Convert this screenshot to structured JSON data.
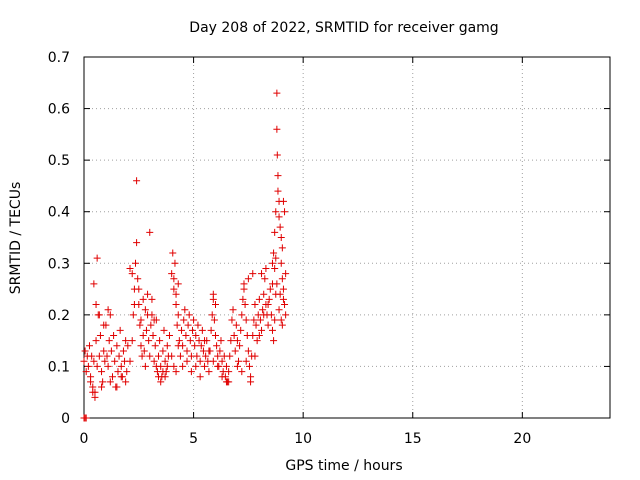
{
  "chart_data": {
    "type": "scatter",
    "title": "Day 208 of 2022, SRMTID for receiver gamg",
    "xlabel": "GPS time / hours",
    "ylabel": "SRMTID / TECUs",
    "xlim": [
      0,
      24
    ],
    "ylim": [
      0,
      0.7
    ],
    "xticks": [
      0,
      5,
      10,
      15,
      20
    ],
    "yticks": [
      0,
      0.1,
      0.2,
      0.3,
      0.4,
      0.5,
      0.6,
      0.7
    ],
    "xtick_labels": [
      "0",
      "5",
      "10",
      "15",
      "20"
    ],
    "ytick_labels": [
      "0",
      "0.1",
      "0.2",
      "0.3",
      "0.4",
      "0.5",
      "0.6",
      "0.7"
    ],
    "grid": true,
    "marker": "+",
    "color": "#e00000",
    "series": [
      {
        "name": "SRMTID",
        "points": [
          [
            0.0,
            0.0
          ],
          [
            0.05,
            0.0
          ],
          [
            0.1,
            0.0
          ],
          [
            0.0,
            0.11
          ],
          [
            0.05,
            0.13
          ],
          [
            0.1,
            0.09
          ],
          [
            0.15,
            0.12
          ],
          [
            0.2,
            0.1
          ],
          [
            0.25,
            0.14
          ],
          [
            0.3,
            0.08
          ],
          [
            0.35,
            0.12
          ],
          [
            0.4,
            0.06
          ],
          [
            0.45,
            0.11
          ],
          [
            0.5,
            0.05
          ],
          [
            0.55,
            0.15
          ],
          [
            0.6,
            0.1
          ],
          [
            0.65,
            0.2
          ],
          [
            0.7,
            0.12
          ],
          [
            0.75,
            0.16
          ],
          [
            0.8,
            0.09
          ],
          [
            0.85,
            0.07
          ],
          [
            0.9,
            0.13
          ],
          [
            0.95,
            0.11
          ],
          [
            1.0,
            0.18
          ],
          [
            1.05,
            0.12
          ],
          [
            1.1,
            0.1
          ],
          [
            1.15,
            0.15
          ],
          [
            1.2,
            0.2
          ],
          [
            1.25,
            0.13
          ],
          [
            1.3,
            0.08
          ],
          [
            1.35,
            0.16
          ],
          [
            1.4,
            0.11
          ],
          [
            1.45,
            0.06
          ],
          [
            1.5,
            0.14
          ],
          [
            1.55,
            0.09
          ],
          [
            1.6,
            0.12
          ],
          [
            1.65,
            0.17
          ],
          [
            1.7,
            0.1
          ],
          [
            1.75,
            0.08
          ],
          [
            1.8,
            0.13
          ],
          [
            1.85,
            0.11
          ],
          [
            1.9,
            0.15
          ],
          [
            1.95,
            0.09
          ],
          [
            2.0,
            0.14
          ],
          [
            0.45,
            0.26
          ],
          [
            0.6,
            0.31
          ],
          [
            0.55,
            0.22
          ],
          [
            0.7,
            0.2
          ],
          [
            0.9,
            0.18
          ],
          [
            1.1,
            0.21
          ],
          [
            0.3,
            0.07
          ],
          [
            0.4,
            0.05
          ],
          [
            0.5,
            0.04
          ],
          [
            0.8,
            0.06
          ],
          [
            1.2,
            0.07
          ],
          [
            1.5,
            0.06
          ],
          [
            1.7,
            0.08
          ],
          [
            1.9,
            0.07
          ],
          [
            2.1,
            0.11
          ],
          [
            2.2,
            0.15
          ],
          [
            2.25,
            0.2
          ],
          [
            2.3,
            0.25
          ],
          [
            2.35,
            0.3
          ],
          [
            2.4,
            0.34
          ],
          [
            2.45,
            0.27
          ],
          [
            2.5,
            0.22
          ],
          [
            2.55,
            0.18
          ],
          [
            2.6,
            0.14
          ],
          [
            2.65,
            0.12
          ],
          [
            2.7,
            0.16
          ],
          [
            2.75,
            0.13
          ],
          [
            2.8,
            0.1
          ],
          [
            2.85,
            0.17
          ],
          [
            2.9,
            0.2
          ],
          [
            2.95,
            0.15
          ],
          [
            3.0,
            0.12
          ],
          [
            3.05,
            0.18
          ],
          [
            3.1,
            0.23
          ],
          [
            3.15,
            0.16
          ],
          [
            3.2,
            0.11
          ],
          [
            3.25,
            0.14
          ],
          [
            3.3,
            0.19
          ],
          [
            3.35,
            0.09
          ],
          [
            3.4,
            0.12
          ],
          [
            3.45,
            0.15
          ],
          [
            3.5,
            0.1
          ],
          [
            3.55,
            0.08
          ],
          [
            3.6,
            0.13
          ],
          [
            3.65,
            0.17
          ],
          [
            3.7,
            0.11
          ],
          [
            3.75,
            0.09
          ],
          [
            3.8,
            0.14
          ],
          [
            3.85,
            0.12
          ],
          [
            3.9,
            0.16
          ],
          [
            2.4,
            0.46
          ],
          [
            3.0,
            0.36
          ],
          [
            2.1,
            0.29
          ],
          [
            2.2,
            0.28
          ],
          [
            2.3,
            0.22
          ],
          [
            2.5,
            0.25
          ],
          [
            2.6,
            0.19
          ],
          [
            2.7,
            0.23
          ],
          [
            2.8,
            0.21
          ],
          [
            2.9,
            0.24
          ],
          [
            3.1,
            0.2
          ],
          [
            3.2,
            0.19
          ],
          [
            3.3,
            0.1
          ],
          [
            3.4,
            0.08
          ],
          [
            3.5,
            0.07
          ],
          [
            3.6,
            0.09
          ],
          [
            3.7,
            0.08
          ],
          [
            3.8,
            0.1
          ],
          [
            4.0,
            0.28
          ],
          [
            4.05,
            0.32
          ],
          [
            4.1,
            0.25
          ],
          [
            4.15,
            0.3
          ],
          [
            4.2,
            0.22
          ],
          [
            4.25,
            0.18
          ],
          [
            4.3,
            0.2
          ],
          [
            4.35,
            0.15
          ],
          [
            4.4,
            0.12
          ],
          [
            4.45,
            0.17
          ],
          [
            4.5,
            0.14
          ],
          [
            4.55,
            0.19
          ],
          [
            4.6,
            0.21
          ],
          [
            4.65,
            0.16
          ],
          [
            4.7,
            0.13
          ],
          [
            4.75,
            0.18
          ],
          [
            4.8,
            0.2
          ],
          [
            4.85,
            0.15
          ],
          [
            4.9,
            0.12
          ],
          [
            4.95,
            0.17
          ],
          [
            5.0,
            0.19
          ],
          [
            5.05,
            0.14
          ],
          [
            5.1,
            0.16
          ],
          [
            5.15,
            0.12
          ],
          [
            5.2,
            0.18
          ],
          [
            5.25,
            0.15
          ],
          [
            5.3,
            0.11
          ],
          [
            5.35,
            0.14
          ],
          [
            5.4,
            0.17
          ],
          [
            5.45,
            0.13
          ],
          [
            5.5,
            0.1
          ],
          [
            5.55,
            0.12
          ],
          [
            5.6,
            0.15
          ],
          [
            5.65,
            0.11
          ],
          [
            5.7,
            0.09
          ],
          [
            5.75,
            0.13
          ],
          [
            5.8,
            0.17
          ],
          [
            5.85,
            0.2
          ],
          [
            5.9,
            0.23
          ],
          [
            5.95,
            0.19
          ],
          [
            6.0,
            0.16
          ],
          [
            6.05,
            0.14
          ],
          [
            6.1,
            0.12
          ],
          [
            6.15,
            0.1
          ],
          [
            6.2,
            0.13
          ],
          [
            6.25,
            0.15
          ],
          [
            6.3,
            0.11
          ],
          [
            6.35,
            0.09
          ],
          [
            6.4,
            0.12
          ],
          [
            6.45,
            0.08
          ],
          [
            6.5,
            0.1
          ],
          [
            6.55,
            0.07
          ],
          [
            6.6,
            0.09
          ],
          [
            6.65,
            0.12
          ],
          [
            4.0,
            0.12
          ],
          [
            4.1,
            0.1
          ],
          [
            4.2,
            0.09
          ],
          [
            4.3,
            0.14
          ],
          [
            4.5,
            0.1
          ],
          [
            4.7,
            0.11
          ],
          [
            4.9,
            0.09
          ],
          [
            5.1,
            0.1
          ],
          [
            5.3,
            0.08
          ],
          [
            5.5,
            0.15
          ],
          [
            5.7,
            0.13
          ],
          [
            5.9,
            0.11
          ],
          [
            6.1,
            0.1
          ],
          [
            6.3,
            0.08
          ],
          [
            6.5,
            0.07
          ],
          [
            6.6,
            0.07
          ],
          [
            4.1,
            0.27
          ],
          [
            4.2,
            0.24
          ],
          [
            4.3,
            0.26
          ],
          [
            5.9,
            0.24
          ],
          [
            6.0,
            0.22
          ],
          [
            6.7,
            0.15
          ],
          [
            6.75,
            0.19
          ],
          [
            6.8,
            0.21
          ],
          [
            6.85,
            0.16
          ],
          [
            6.9,
            0.13
          ],
          [
            6.95,
            0.18
          ],
          [
            7.0,
            0.15
          ],
          [
            7.05,
            0.11
          ],
          [
            7.1,
            0.14
          ],
          [
            7.15,
            0.17
          ],
          [
            7.2,
            0.2
          ],
          [
            7.25,
            0.23
          ],
          [
            7.3,
            0.26
          ],
          [
            7.35,
            0.22
          ],
          [
            7.4,
            0.19
          ],
          [
            7.45,
            0.16
          ],
          [
            7.5,
            0.13
          ],
          [
            7.55,
            0.1
          ],
          [
            7.6,
            0.08
          ],
          [
            7.65,
            0.12
          ],
          [
            7.7,
            0.16
          ],
          [
            7.75,
            0.19
          ],
          [
            7.8,
            0.22
          ],
          [
            7.85,
            0.18
          ],
          [
            7.9,
            0.15
          ],
          [
            7.95,
            0.2
          ],
          [
            8.0,
            0.23
          ],
          [
            8.05,
            0.19
          ],
          [
            8.1,
            0.17
          ],
          [
            8.15,
            0.21
          ],
          [
            8.2,
            0.24
          ],
          [
            8.25,
            0.27
          ],
          [
            8.3,
            0.22
          ],
          [
            8.35,
            0.2
          ],
          [
            8.4,
            0.18
          ],
          [
            8.45,
            0.23
          ],
          [
            8.5,
            0.25
          ],
          [
            8.55,
            0.2
          ],
          [
            8.6,
            0.17
          ],
          [
            8.65,
            0.15
          ],
          [
            8.7,
            0.19
          ],
          [
            8.75,
            0.24
          ],
          [
            7.0,
            0.1
          ],
          [
            7.2,
            0.09
          ],
          [
            7.4,
            0.11
          ],
          [
            7.6,
            0.07
          ],
          [
            7.8,
            0.12
          ],
          [
            8.0,
            0.16
          ],
          [
            8.2,
            0.2
          ],
          [
            8.4,
            0.22
          ],
          [
            8.6,
            0.26
          ],
          [
            7.3,
            0.25
          ],
          [
            7.5,
            0.27
          ],
          [
            7.7,
            0.28
          ],
          [
            8.1,
            0.28
          ],
          [
            8.3,
            0.29
          ],
          [
            8.6,
            0.3
          ],
          [
            8.65,
            0.32
          ],
          [
            8.7,
            0.36
          ],
          [
            8.75,
            0.4
          ],
          [
            8.8,
            0.63
          ],
          [
            8.8,
            0.56
          ],
          [
            8.82,
            0.51
          ],
          [
            8.85,
            0.44
          ],
          [
            8.85,
            0.47
          ],
          [
            8.9,
            0.42
          ],
          [
            8.9,
            0.39
          ],
          [
            8.95,
            0.37
          ],
          [
            9.0,
            0.35
          ],
          [
            9.0,
            0.3
          ],
          [
            9.05,
            0.33
          ],
          [
            9.05,
            0.27
          ],
          [
            9.1,
            0.42
          ],
          [
            9.1,
            0.25
          ],
          [
            9.15,
            0.22
          ],
          [
            9.15,
            0.4
          ],
          [
            9.2,
            0.28
          ],
          [
            9.2,
            0.2
          ],
          [
            8.95,
            0.24
          ],
          [
            9.0,
            0.19
          ],
          [
            8.9,
            0.21
          ],
          [
            8.8,
            0.26
          ],
          [
            8.7,
            0.29
          ],
          [
            8.75,
            0.31
          ],
          [
            9.1,
            0.23
          ],
          [
            9.05,
            0.18
          ]
        ]
      }
    ]
  }
}
